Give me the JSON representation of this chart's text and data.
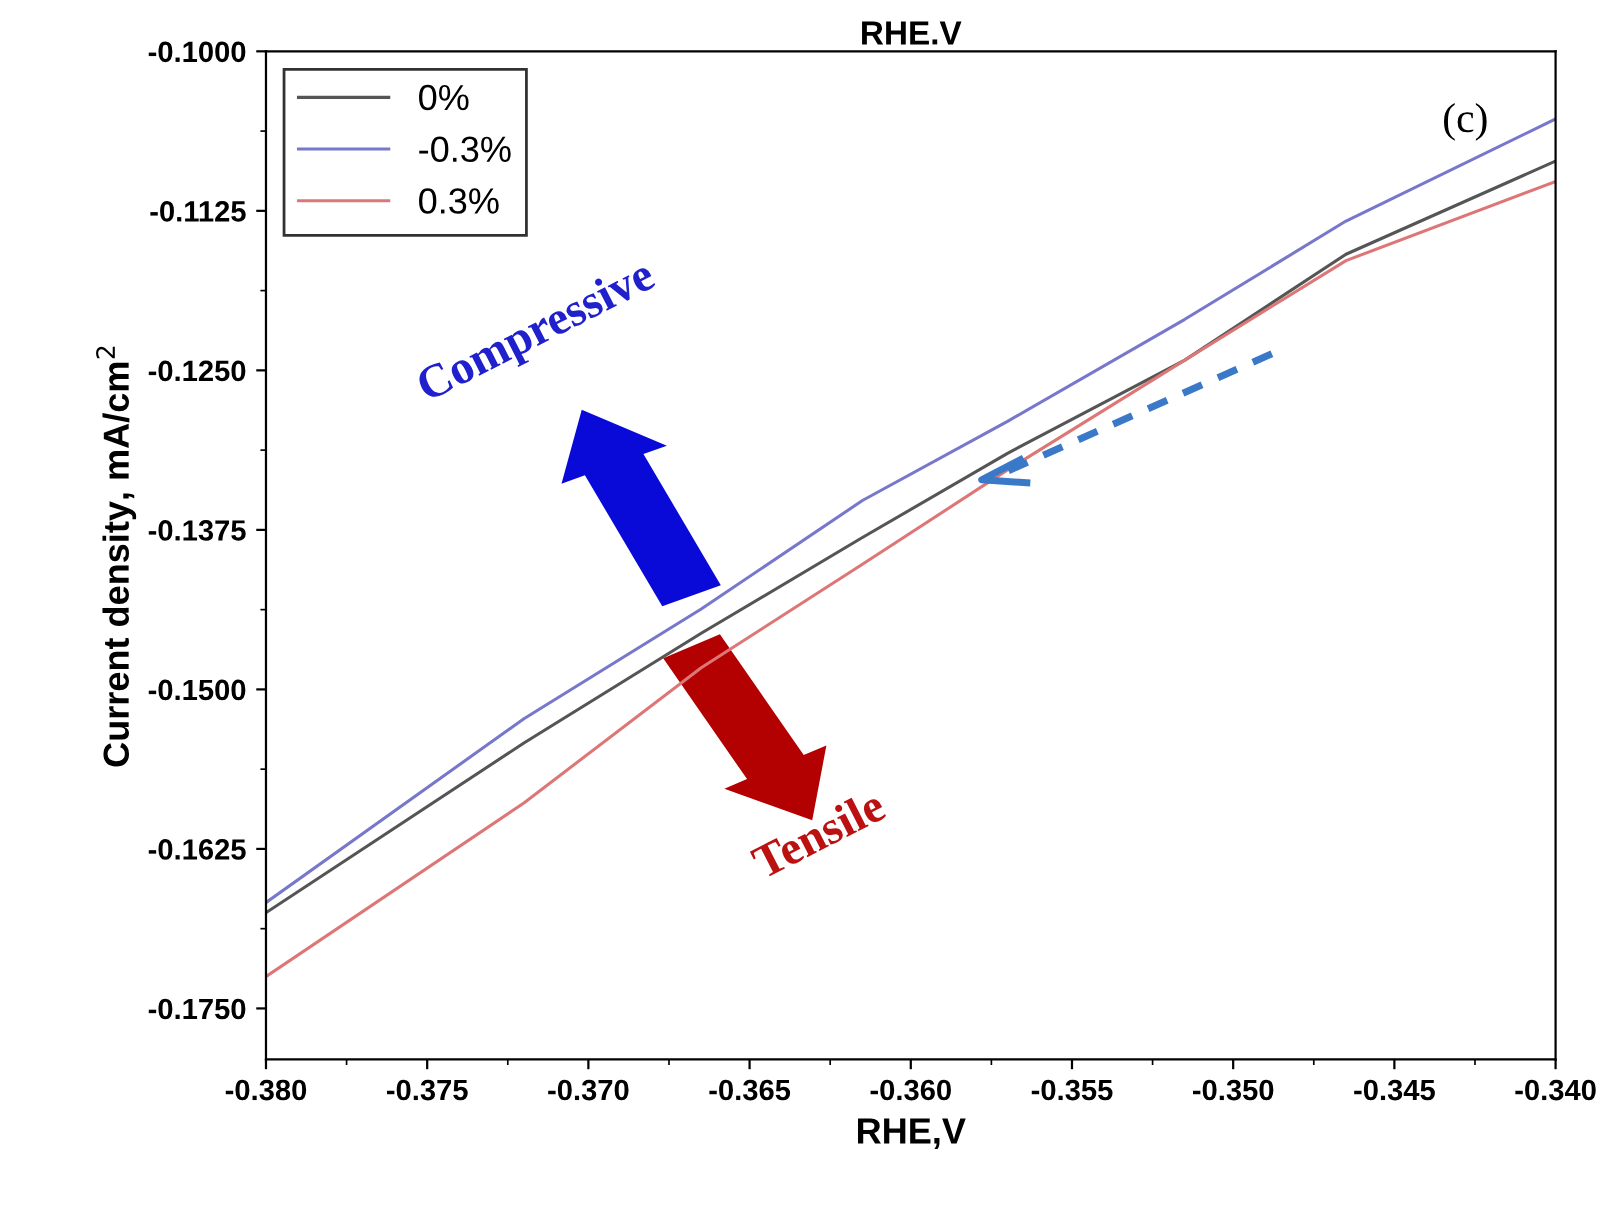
{
  "chart_data": {
    "type": "line",
    "title": "RHE.V",
    "xlabel": "RHE,V",
    "ylabel": "Current density, mA/cm$^{2}$",
    "xlim": [
      -0.38,
      -0.34
    ],
    "ylim": [
      -0.179,
      -0.1
    ],
    "xticks": [
      {
        "value": -0.38,
        "label": "-0.380"
      },
      {
        "value": -0.375,
        "label": "-0.375"
      },
      {
        "value": -0.37,
        "label": "-0.370"
      },
      {
        "value": -0.365,
        "label": "-0.365"
      },
      {
        "value": -0.36,
        "label": "-0.360"
      },
      {
        "value": -0.355,
        "label": "-0.355"
      },
      {
        "value": -0.35,
        "label": "-0.350"
      },
      {
        "value": -0.345,
        "label": "-0.345"
      },
      {
        "value": -0.34,
        "label": "-0.340"
      }
    ],
    "yticks": [
      {
        "value": -0.1,
        "label": "-0.1000"
      },
      {
        "value": -0.1125,
        "label": "-0.1125"
      },
      {
        "value": -0.125,
        "label": "-0.1250"
      },
      {
        "value": -0.1375,
        "label": "-0.1375"
      },
      {
        "value": -0.15,
        "label": "-0.1500"
      },
      {
        "value": -0.1625,
        "label": "-0.1625"
      },
      {
        "value": -0.175,
        "label": "-0.1750"
      }
    ],
    "x": [
      -0.38,
      -0.372,
      -0.3665,
      -0.3615,
      -0.357,
      -0.3515,
      -0.3465,
      -0.34
    ],
    "series": [
      {
        "name": "0%",
        "color": "#555555",
        "values": [
          -0.1675,
          -0.1542,
          -0.1456,
          -0.1381,
          -0.1315,
          -0.1242,
          -0.1159,
          -0.1086
        ]
      },
      {
        "name": "-0.3%",
        "color": "#7777cc",
        "values": [
          -0.1667,
          -0.1523,
          -0.1437,
          -0.1352,
          -0.129,
          -0.121,
          -0.1133,
          -0.1053
        ]
      },
      {
        "name": "0.3%",
        "color": "#dd7777",
        "values": [
          -0.1725,
          -0.1589,
          -0.1483,
          -0.1402,
          -0.1328,
          -0.1242,
          -0.1164,
          -0.1102
        ]
      }
    ],
    "legend": "top left",
    "grid": false,
    "marker": "none",
    "line_style": "solid",
    "annotations": [
      "(c)",
      "Compressive",
      "Tensile"
    ]
  }
}
